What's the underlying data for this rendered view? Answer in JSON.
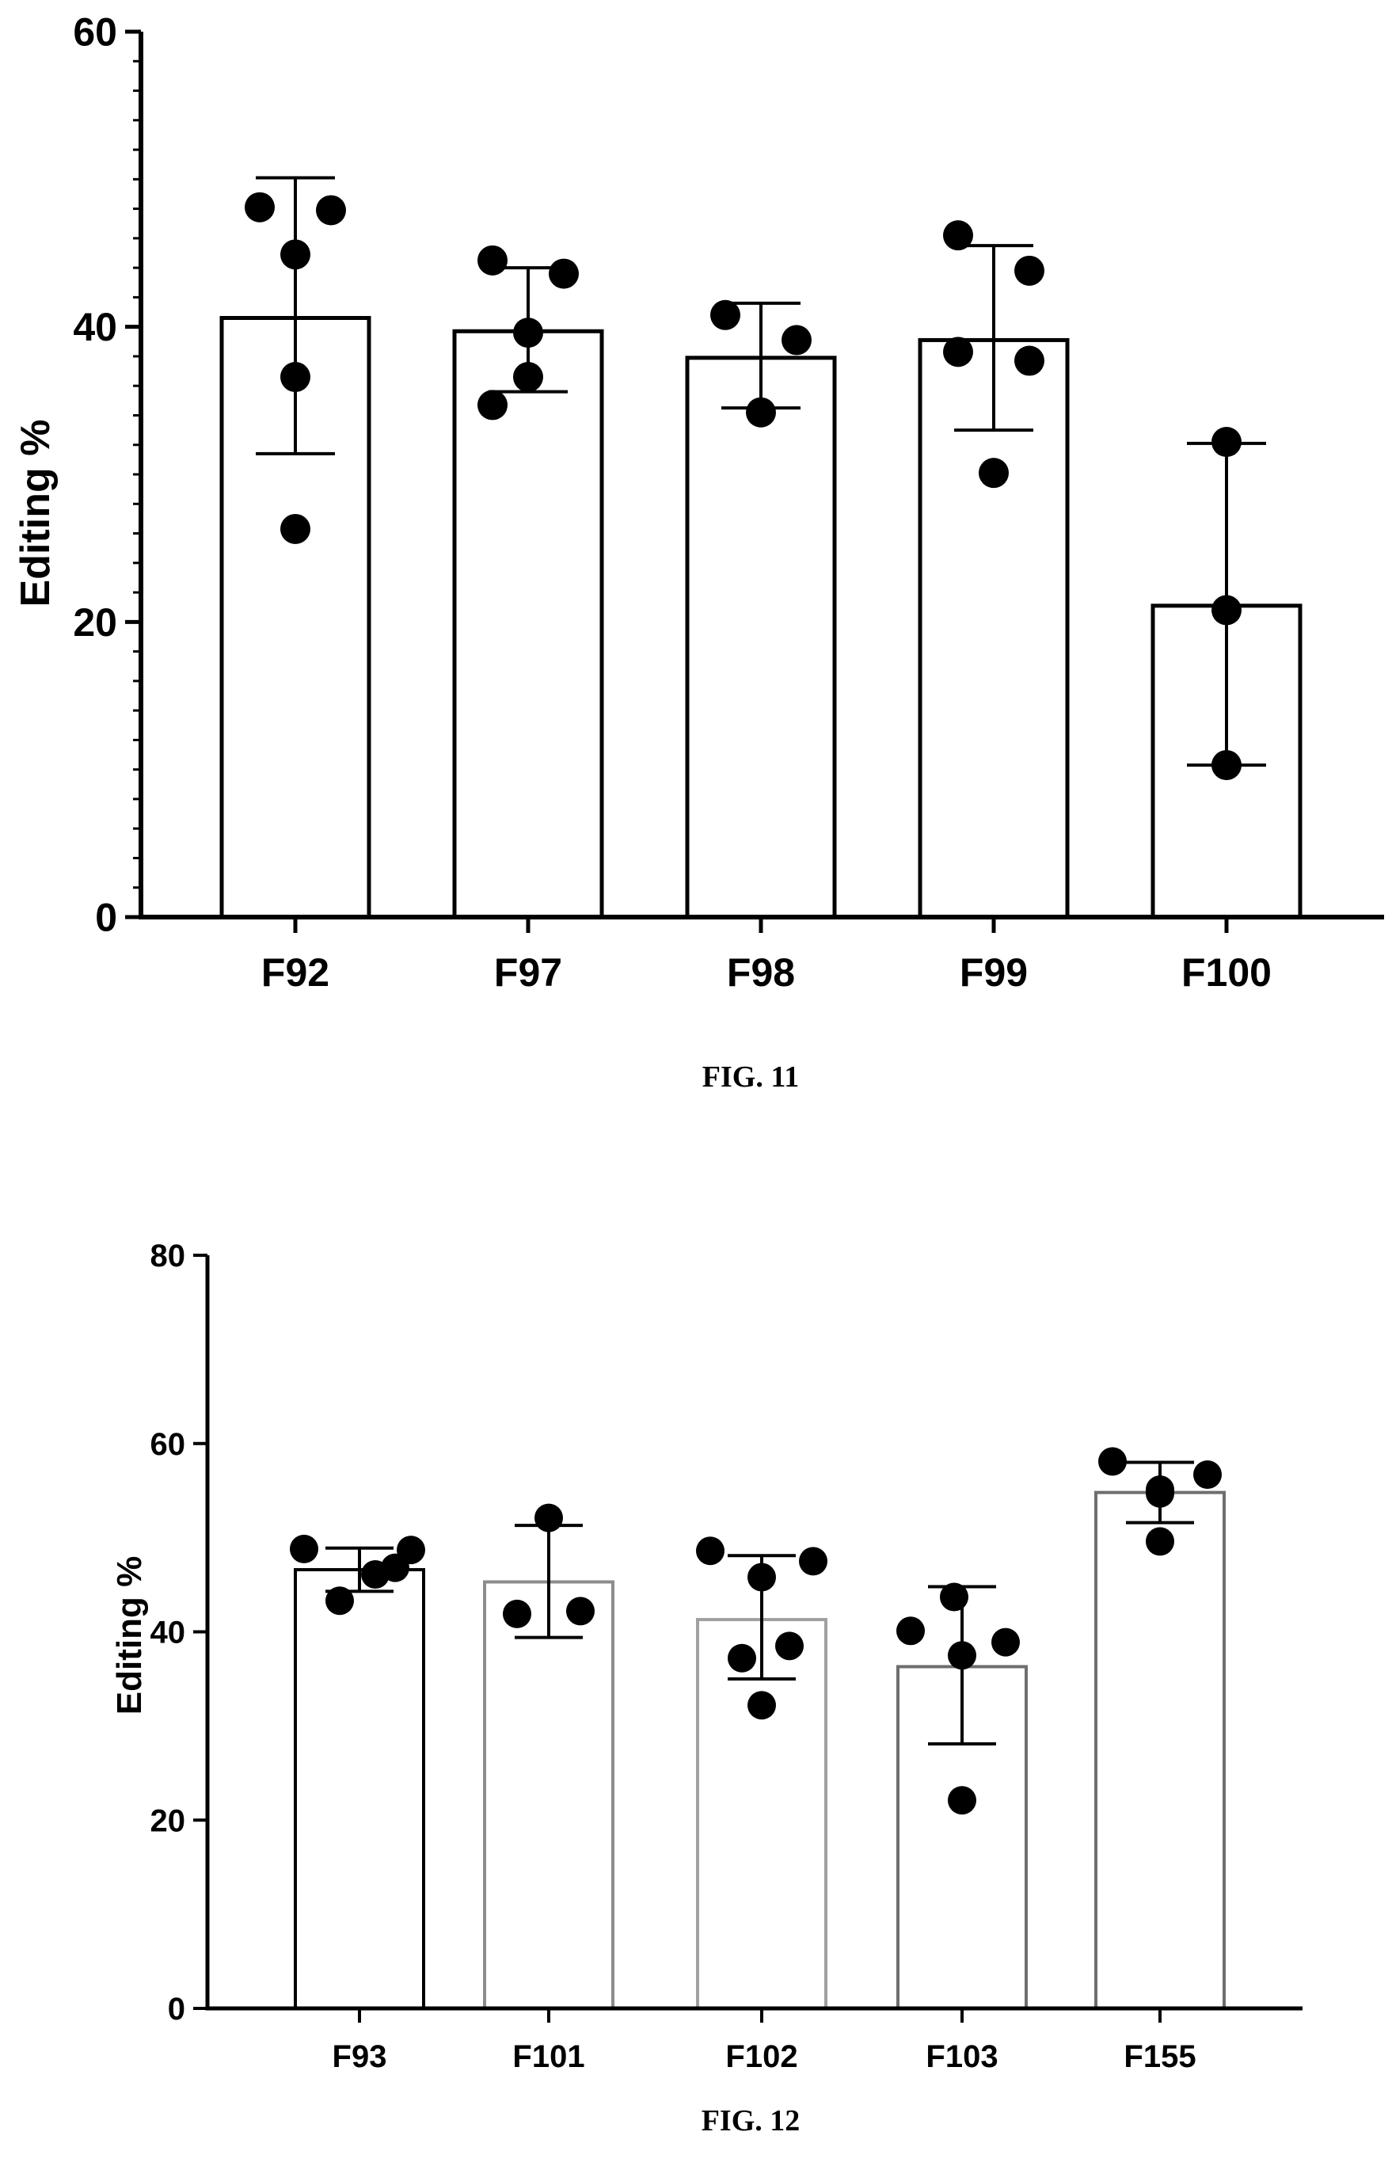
{
  "chart_data": [
    {
      "type": "bar",
      "caption": "FIG. 11",
      "ylabel": "Editing %",
      "ylim": [
        0,
        60
      ],
      "yticks": [
        0,
        20,
        40,
        60
      ],
      "grid": false,
      "bar_color": "#000000",
      "point_color": "#000000",
      "categories": [
        "F92",
        "F97",
        "F98",
        "F99",
        "F100"
      ],
      "series": [
        {
          "values": [
            40.6,
            39.7,
            37.9,
            39.1,
            21.1
          ],
          "error": [
            [
              31.4,
              50.1
            ],
            [
              35.6,
              44.0
            ],
            [
              34.5,
              41.6
            ],
            [
              33.0,
              45.5
            ],
            [
              10.3,
              32.1
            ]
          ],
          "points": [
            [
              48.1,
              47.9,
              44.9,
              36.6,
              26.3
            ],
            [
              44.5,
              43.6,
              39.6,
              36.6,
              34.7
            ],
            [
              40.8,
              39.1,
              34.2
            ],
            [
              46.2,
              43.8,
              38.3,
              37.7,
              30.1
            ],
            [
              32.2,
              20.8,
              10.3
            ]
          ]
        }
      ]
    },
    {
      "type": "bar",
      "caption": "FIG. 12",
      "ylabel": "Editing %",
      "ylim": [
        0,
        80
      ],
      "yticks": [
        0,
        20,
        40,
        60,
        80
      ],
      "grid": false,
      "bar_colors": [
        "#000000",
        "#8c8c8c",
        "#a0a0a0",
        "#6e6e6e",
        "#6e6e6e"
      ],
      "point_color": "#000000",
      "categories": [
        "F93",
        "F101",
        "F102",
        "F103",
        "F155"
      ],
      "series": [
        {
          "values": [
            46.6,
            45.3,
            41.3,
            36.3,
            54.8
          ],
          "error": [
            [
              44.3,
              48.9
            ],
            [
              39.4,
              51.3
            ],
            [
              35.0,
              48.1
            ],
            [
              28.1,
              44.8
            ],
            [
              51.6,
              58.0
            ]
          ],
          "points": [
            [
              48.8,
              46.8,
              48.7,
              46.1,
              43.3
            ],
            [
              52.1,
              41.9,
              42.2
            ],
            [
              48.6,
              47.5,
              45.8,
              38.5,
              37.2,
              32.2
            ],
            [
              40.1,
              43.7,
              38.9,
              37.5,
              22.1
            ],
            [
              58.1,
              55.1,
              56.7,
              54.7,
              49.6
            ]
          ]
        }
      ]
    }
  ]
}
